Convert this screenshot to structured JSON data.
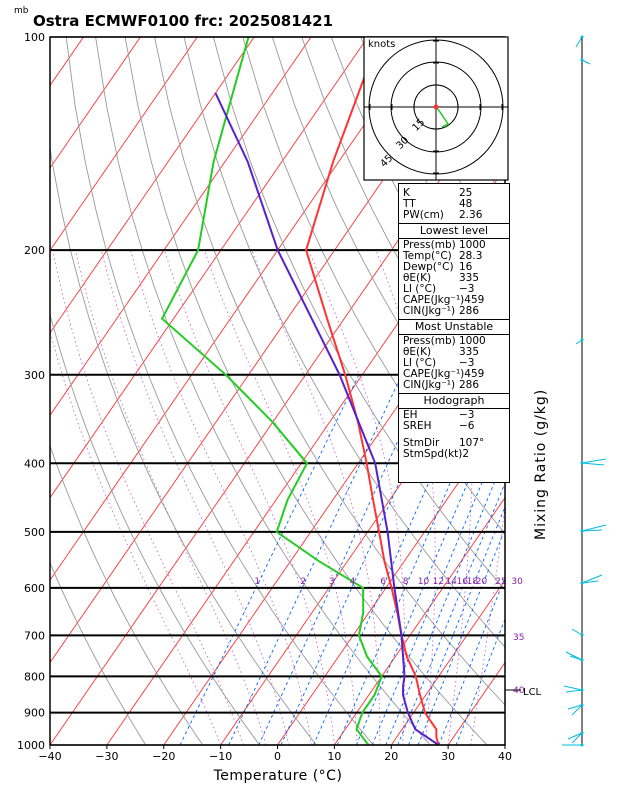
{
  "title": "Ostra ECMWF0100  frc: 2025081421",
  "pressure_unit": "mb",
  "xlabel": "Temperature (°C)",
  "right_label": "Mixing Ratio  (g/kg)",
  "hodograph": {
    "unit_label": "knots",
    "ring_labels": [
      "15",
      "30",
      "45"
    ]
  },
  "lcl_label": "LCL",
  "mixing_ratio_labels": [
    "1",
    "2",
    "3",
    "4",
    "6",
    "8",
    "10",
    "12",
    "14",
    "16",
    "18",
    "20",
    "25",
    "30"
  ],
  "theta_labels": [
    "35",
    "40"
  ],
  "table": {
    "top": [
      {
        "k": "K",
        "v": "25"
      },
      {
        "k": "TT",
        "v": "48"
      },
      {
        "k": "PW(cm)",
        "v": "2.36"
      }
    ],
    "lowest_level": {
      "header": "Lowest level",
      "rows": [
        {
          "k": "Press(mb)",
          "v": "1000"
        },
        {
          "k": "Temp(°C)",
          "v": "28.3"
        },
        {
          "k": "Dewp(°C)",
          "v": "16"
        },
        {
          "k": "θE(K)",
          "v": "335"
        },
        {
          "k": "LI  (°C)",
          "v": "−3"
        },
        {
          "k": "CAPE(Jkg⁻¹)",
          "v": "459"
        },
        {
          "k": "CIN(Jkg⁻¹)",
          "v": "286"
        }
      ]
    },
    "most_unstable": {
      "header": "Most Unstable",
      "rows": [
        {
          "k": "Press(mb)",
          "v": "1000"
        },
        {
          "k": "θE(K)",
          "v": "335"
        },
        {
          "k": "LI  (°C)",
          "v": "−3"
        },
        {
          "k": "CAPE(Jkg⁻¹)",
          "v": "459"
        },
        {
          "k": "CIN(Jkg⁻¹)",
          "v": "286"
        }
      ]
    },
    "hodograph": {
      "header": "Hodograph",
      "rows": [
        {
          "k": "EH",
          "v": "−3"
        },
        {
          "k": "SREH",
          "v": "−6"
        }
      ],
      "rows2": [
        {
          "k": "StmDir",
          "v": "107°"
        },
        {
          "k": "StmSpd(kt)",
          "v": "2"
        }
      ]
    }
  },
  "colors": {
    "temperature": "#ff3333",
    "dewpoint": "#22cc22",
    "parcel": "#5522cc",
    "isotherm": "#ff3333",
    "dry_adiabat": "#999999",
    "mixing_ratio": "#0066ff",
    "moist_adiabat": "#cc66cc",
    "wind_barb": "#00bbdd"
  },
  "chart_data": {
    "type": "line",
    "subtype": "skew-T log-P",
    "title": "Ostra ECMWF0100  frc: 2025081421",
    "xlabel": "Temperature (°C)",
    "ylabel": "mb",
    "xlim": [
      -40,
      40
    ],
    "ylim": [
      1000,
      100
    ],
    "x_ticks": [
      -40,
      -30,
      -20,
      -10,
      0,
      10,
      20,
      30,
      40
    ],
    "y_ticks": [
      1000,
      900,
      800,
      700,
      600,
      500,
      400,
      300,
      200,
      100
    ],
    "y_scale": "log",
    "series": [
      {
        "key": "temperature",
        "points": [
          [
            1000,
            28.3
          ],
          [
            975,
            27
          ],
          [
            950,
            26
          ],
          [
            925,
            24
          ],
          [
            900,
            22
          ],
          [
            850,
            19
          ],
          [
            800,
            16
          ],
          [
            750,
            12
          ],
          [
            700,
            8.5
          ],
          [
            650,
            5
          ],
          [
            600,
            1
          ],
          [
            550,
            -3.5
          ],
          [
            500,
            -8
          ],
          [
            450,
            -13
          ],
          [
            400,
            -18.5
          ],
          [
            350,
            -25
          ],
          [
            300,
            -33
          ],
          [
            250,
            -43
          ],
          [
            200,
            -55
          ],
          [
            150,
            -61
          ],
          [
            100,
            -68
          ]
        ]
      },
      {
        "key": "dewpoint",
        "points": [
          [
            1000,
            16
          ],
          [
            975,
            14
          ],
          [
            950,
            12
          ],
          [
            925,
            11.5
          ],
          [
            900,
            11
          ],
          [
            850,
            11
          ],
          [
            800,
            10
          ],
          [
            750,
            5
          ],
          [
            700,
            1
          ],
          [
            650,
            -1
          ],
          [
            600,
            -4
          ],
          [
            550,
            -15
          ],
          [
            500,
            -26
          ],
          [
            450,
            -28
          ],
          [
            400,
            -29
          ],
          [
            350,
            -40
          ],
          [
            300,
            -54
          ],
          [
            250,
            -72
          ],
          [
            200,
            -74
          ],
          [
            150,
            -82
          ],
          [
            100,
            -91
          ]
        ]
      },
      {
        "key": "parcel",
        "points": [
          [
            1000,
            28.3
          ],
          [
            950,
            22.3
          ],
          [
            900,
            19
          ],
          [
            850,
            16
          ],
          [
            825,
            14.9
          ],
          [
            800,
            14
          ],
          [
            700,
            8.5
          ],
          [
            600,
            1.5
          ],
          [
            500,
            -6.5
          ],
          [
            400,
            -17
          ],
          [
            300,
            -34
          ],
          [
            200,
            -60
          ],
          [
            150,
            -76
          ],
          [
            120,
            -90
          ]
        ]
      }
    ]
  }
}
